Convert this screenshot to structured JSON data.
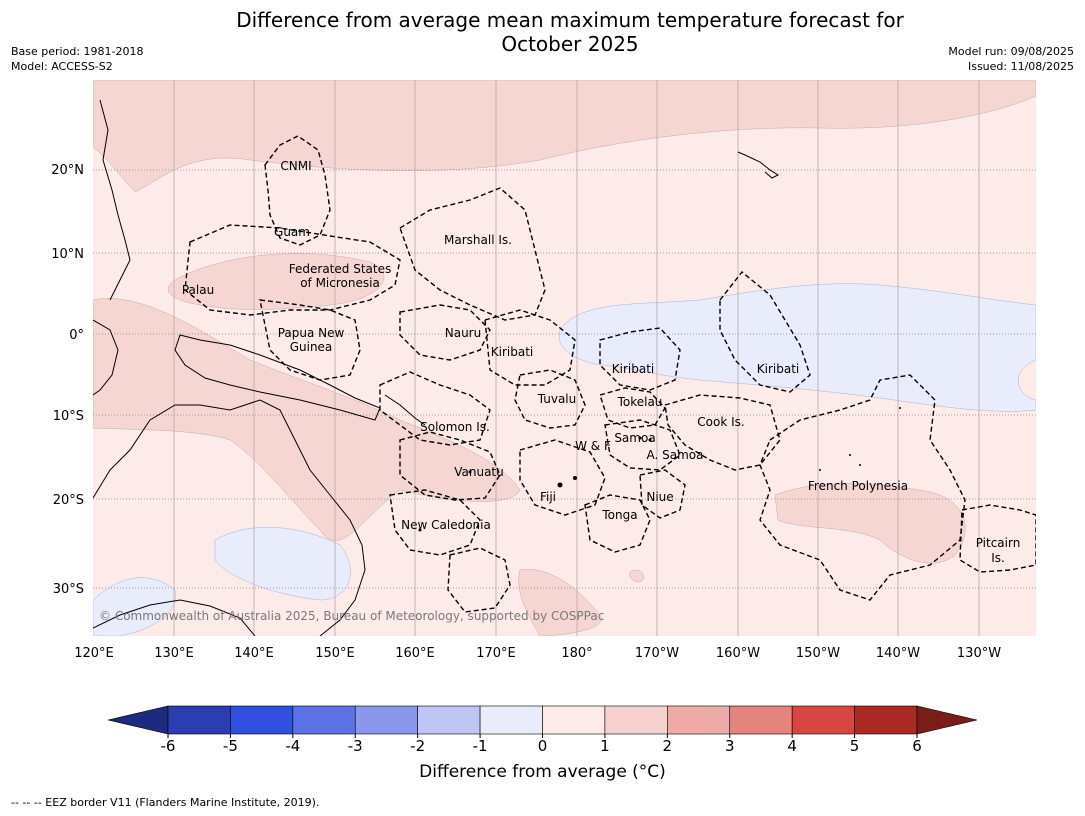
{
  "title_line1": "Difference from average mean maximum temperature forecast for",
  "title_line2": "October 2025",
  "meta_left": [
    "Base period: 1981-2018",
    "Model: ACCESS-S2"
  ],
  "meta_right": [
    "Model run: 09/08/2025",
    "Issued: 11/08/2025"
  ],
  "copyright": "© Commonwealth of Australia 2025, Bureau of Meteorology, supported by COSPPac",
  "lon_labels": [
    "120°E",
    "130°E",
    "140°E",
    "150°E",
    "160°E",
    "170°E",
    "180°",
    "170°W",
    "160°W",
    "150°W",
    "140°W",
    "130°W"
  ],
  "lat_labels": [
    "20°N",
    "10°N",
    "0°",
    "10°S",
    "20°S",
    "30°S"
  ],
  "places": [
    "CNMI",
    "Guam",
    "Marshall Is.",
    "Federated States",
    "of Micronesia",
    "Palau",
    "Papua New",
    "Guinea",
    "Nauru",
    "Kiribati",
    "Kiribati",
    "Kiribati",
    "Tuvalu",
    "Tokelau",
    "Solomon Is.",
    "Cook Is.",
    "W & F",
    "Samoa",
    "A. Samoa",
    "Vanuatu",
    "Fiji",
    "Niue",
    "Tonga",
    "French Polynesia",
    "New Caledonia",
    "Pitcairn",
    "Is."
  ],
  "colorbar": {
    "ticks": [
      "-6",
      "-5",
      "-4",
      "-3",
      "-2",
      "-1",
      "0",
      "1",
      "2",
      "3",
      "4",
      "5",
      "6"
    ],
    "colors": [
      "#2a3eb1",
      "#3050e0",
      "#5a72e4",
      "#8a97ea",
      "#bfc6f3",
      "#e8ecfb",
      "#fcebe9",
      "#f5d1cf",
      "#eeaaa6",
      "#e5837d",
      "#d8473f",
      "#ab2a22"
    ],
    "under_color": "#1d2a80",
    "over_color": "#7a1d19",
    "label": "Difference from average ($^\\circ$C)",
    "label_display": "Difference from average (°C)"
  },
  "footer": "--  --  -- EEZ border V11 (Flanders Marine Institute, 2019).",
  "map_colors": {
    "ocean_base": "#fcebe9",
    "warm_1_2": "#f5d6d3",
    "cool_0_-1": "#e9ecfa",
    "land_line": "#000000",
    "grid": "#b8a8a8"
  }
}
